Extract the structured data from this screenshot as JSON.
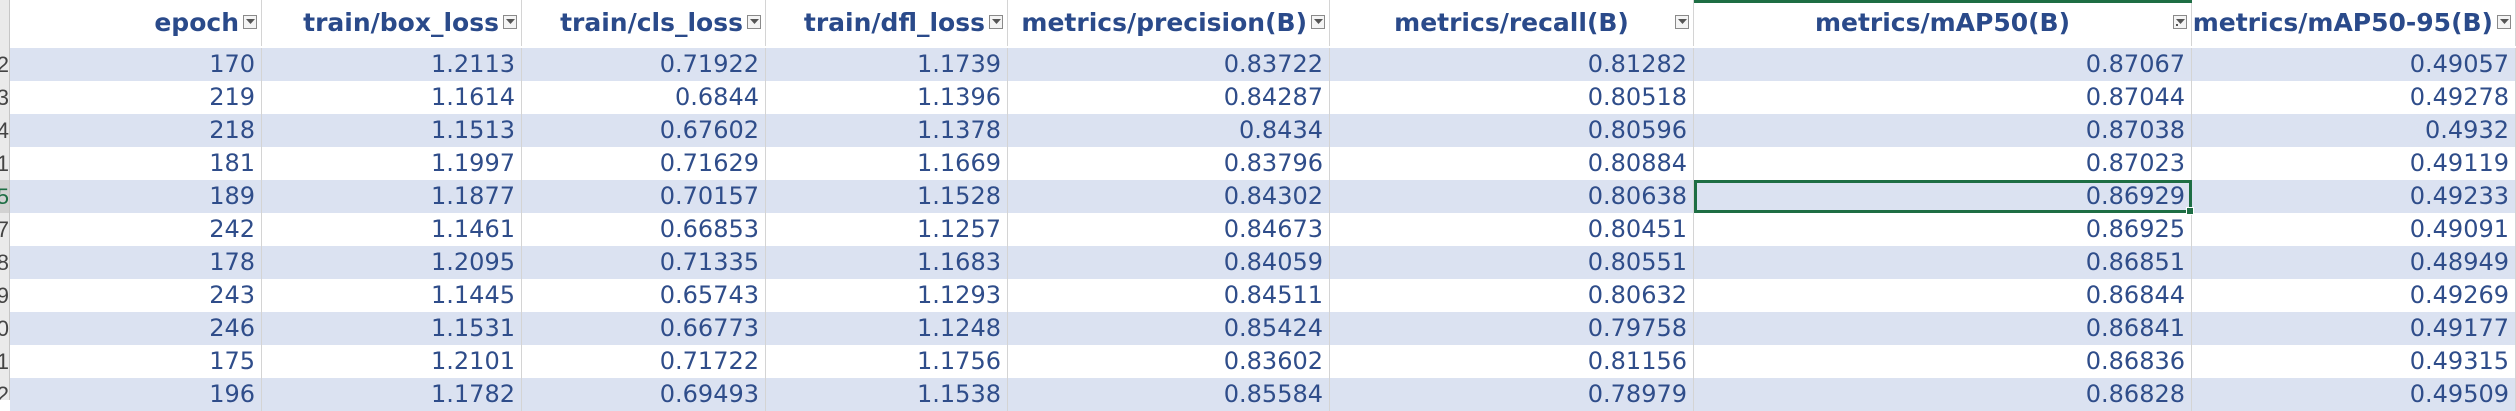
{
  "sheet": {
    "columns": [
      {
        "key": "epoch",
        "label": "epoch",
        "filter_icon": "filter-dropdown-icon"
      },
      {
        "key": "train_box_loss",
        "label": "train/box_loss",
        "filter_icon": "filter-dropdown-icon"
      },
      {
        "key": "train_cls_loss",
        "label": "train/cls_loss",
        "filter_icon": "filter-dropdown-icon"
      },
      {
        "key": "train_dfl_loss",
        "label": "train/dfl_loss",
        "filter_icon": "filter-dropdown-icon"
      },
      {
        "key": "metrics_precision",
        "label": "metrics/precision(B)",
        "filter_icon": "filter-dropdown-icon"
      },
      {
        "key": "metrics_recall",
        "label": "metrics/recall(B)",
        "filter_icon": "filter-dropdown-icon"
      },
      {
        "key": "metrics_map50",
        "label": "metrics/mAP50(B)",
        "filter_icon": "sorted-descending-filter-icon"
      },
      {
        "key": "metrics_map50_95",
        "label": "metrics/mAP50-95(B)",
        "filter_icon": "filter-dropdown-icon"
      }
    ],
    "row_numbers": [
      "2",
      "3",
      "4",
      "1",
      "5",
      "7",
      "8",
      "9",
      "0",
      "1",
      "2"
    ],
    "active_row_number": "5",
    "rows": [
      [
        "170",
        "1.2113",
        "0.71922",
        "1.1739",
        "0.83722",
        "0.81282",
        "0.87067",
        "0.49057"
      ],
      [
        "219",
        "1.1614",
        "0.6844",
        "1.1396",
        "0.84287",
        "0.80518",
        "0.87044",
        "0.49278"
      ],
      [
        "218",
        "1.1513",
        "0.67602",
        "1.1378",
        "0.8434",
        "0.80596",
        "0.87038",
        "0.4932"
      ],
      [
        "181",
        "1.1997",
        "0.71629",
        "1.1669",
        "0.83796",
        "0.80884",
        "0.87023",
        "0.49119"
      ],
      [
        "189",
        "1.1877",
        "0.70157",
        "1.1528",
        "0.84302",
        "0.80638",
        "0.86929",
        "0.49233"
      ],
      [
        "242",
        "1.1461",
        "0.66853",
        "1.1257",
        "0.84673",
        "0.80451",
        "0.86925",
        "0.49091"
      ],
      [
        "178",
        "1.2095",
        "0.71335",
        "1.1683",
        "0.84059",
        "0.80551",
        "0.86851",
        "0.48949"
      ],
      [
        "243",
        "1.1445",
        "0.65743",
        "1.1293",
        "0.84511",
        "0.80632",
        "0.86844",
        "0.49269"
      ],
      [
        "246",
        "1.1531",
        "0.66773",
        "1.1248",
        "0.85424",
        "0.79758",
        "0.86841",
        "0.49177"
      ],
      [
        "175",
        "1.2101",
        "0.71722",
        "1.1756",
        "0.83602",
        "0.81156",
        "0.86836",
        "0.49315"
      ],
      [
        "196",
        "1.1782",
        "0.69493",
        "1.1538",
        "0.85584",
        "0.78979",
        "0.86828",
        "0.49509"
      ]
    ],
    "selected_cell": {
      "row": 4,
      "col": 6,
      "value": "0.86929"
    },
    "colors": {
      "band_fill": "#dbe2f1",
      "text": "#2f4d8a",
      "selection": "#1e6e44"
    }
  }
}
